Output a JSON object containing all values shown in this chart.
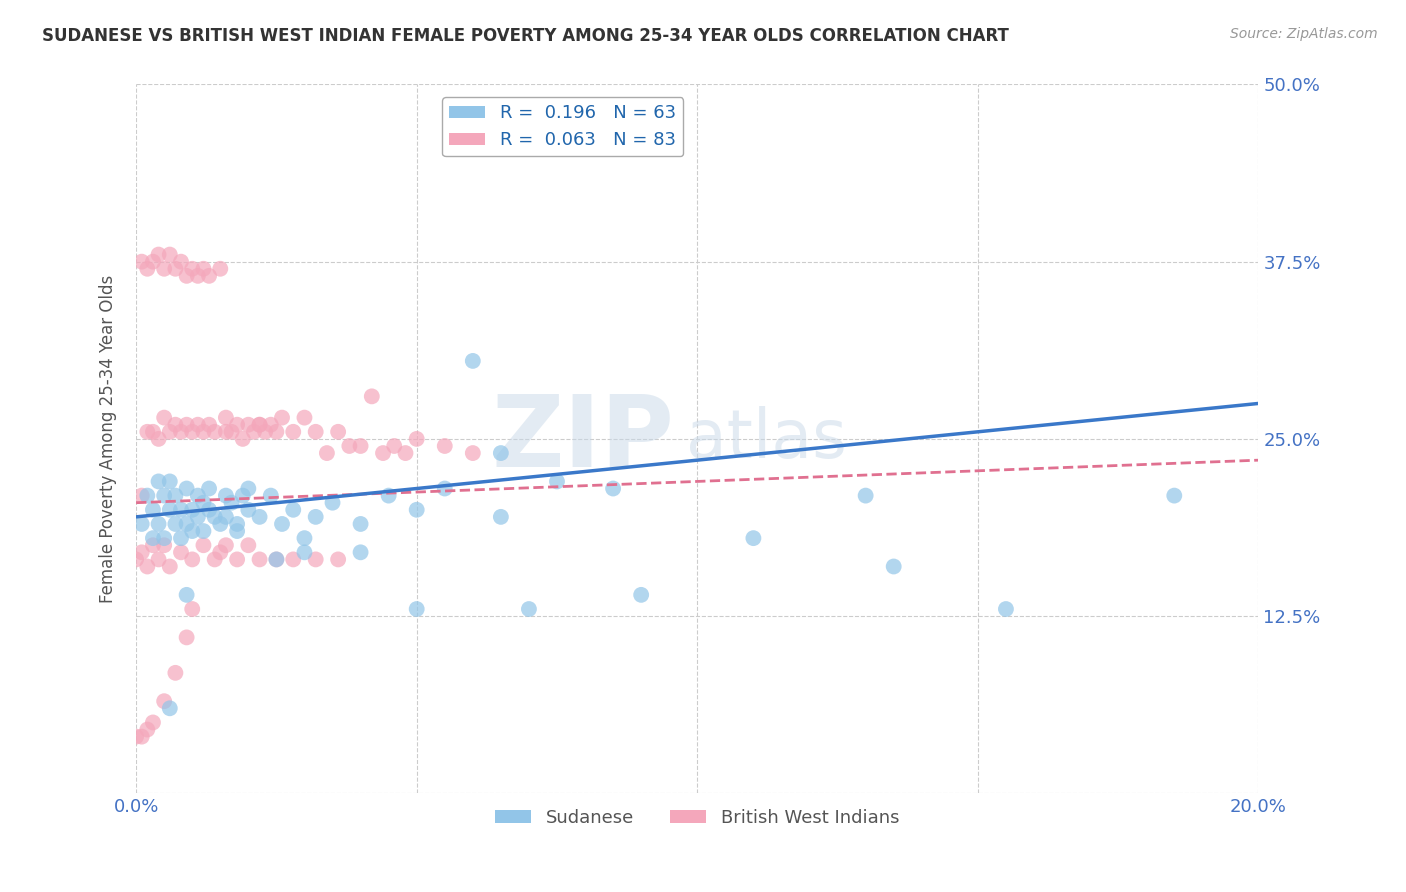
{
  "title": "SUDANESE VS BRITISH WEST INDIAN FEMALE POVERTY AMONG 25-34 YEAR OLDS CORRELATION CHART",
  "source": "Source: ZipAtlas.com",
  "ylabel": "Female Poverty Among 25-34 Year Olds",
  "xlim": [
    0.0,
    0.2
  ],
  "ylim": [
    0.0,
    0.5
  ],
  "sudanese_R": 0.196,
  "sudanese_N": 63,
  "bwi_R": 0.063,
  "bwi_N": 83,
  "sudanese_color": "#92c5e8",
  "bwi_color": "#f4a7bb",
  "sudanese_line_color": "#3a78c9",
  "bwi_line_color": "#e07090",
  "watermark_zip": "ZIP",
  "watermark_atlas": "atlas",
  "background_color": "#ffffff",
  "grid_color": "#cccccc",
  "sud_line_x0": 0.0,
  "sud_line_y0": 0.195,
  "sud_line_x1": 0.2,
  "sud_line_y1": 0.275,
  "bwi_line_x0": 0.0,
  "bwi_line_y0": 0.205,
  "bwi_line_x1": 0.2,
  "bwi_line_y1": 0.235,
  "sud_scatter_x": [
    0.001,
    0.002,
    0.003,
    0.003,
    0.004,
    0.004,
    0.005,
    0.005,
    0.006,
    0.006,
    0.007,
    0.007,
    0.008,
    0.008,
    0.009,
    0.009,
    0.01,
    0.01,
    0.011,
    0.011,
    0.012,
    0.012,
    0.013,
    0.013,
    0.014,
    0.015,
    0.016,
    0.016,
    0.017,
    0.018,
    0.019,
    0.02,
    0.022,
    0.024,
    0.026,
    0.028,
    0.03,
    0.032,
    0.035,
    0.04,
    0.045,
    0.05,
    0.055,
    0.06,
    0.065,
    0.075,
    0.085,
    0.065,
    0.13,
    0.185,
    0.135,
    0.155,
    0.05,
    0.07,
    0.09,
    0.11,
    0.04,
    0.02,
    0.025,
    0.03,
    0.018,
    0.009,
    0.006
  ],
  "sud_scatter_y": [
    0.19,
    0.21,
    0.2,
    0.18,
    0.22,
    0.19,
    0.21,
    0.18,
    0.2,
    0.22,
    0.19,
    0.21,
    0.2,
    0.18,
    0.215,
    0.19,
    0.2,
    0.185,
    0.21,
    0.195,
    0.205,
    0.185,
    0.2,
    0.215,
    0.195,
    0.19,
    0.21,
    0.195,
    0.205,
    0.19,
    0.21,
    0.2,
    0.195,
    0.21,
    0.19,
    0.2,
    0.18,
    0.195,
    0.205,
    0.19,
    0.21,
    0.2,
    0.215,
    0.305,
    0.195,
    0.22,
    0.215,
    0.24,
    0.21,
    0.21,
    0.16,
    0.13,
    0.13,
    0.13,
    0.14,
    0.18,
    0.17,
    0.215,
    0.165,
    0.17,
    0.185,
    0.14,
    0.06
  ],
  "bwi_scatter_x": [
    0.001,
    0.001,
    0.002,
    0.002,
    0.003,
    0.003,
    0.004,
    0.004,
    0.005,
    0.005,
    0.006,
    0.006,
    0.007,
    0.007,
    0.008,
    0.008,
    0.009,
    0.009,
    0.01,
    0.01,
    0.011,
    0.011,
    0.012,
    0.012,
    0.013,
    0.013,
    0.014,
    0.015,
    0.016,
    0.016,
    0.017,
    0.018,
    0.019,
    0.02,
    0.021,
    0.022,
    0.023,
    0.024,
    0.025,
    0.026,
    0.028,
    0.03,
    0.032,
    0.034,
    0.036,
    0.038,
    0.04,
    0.042,
    0.044,
    0.046,
    0.048,
    0.05,
    0.055,
    0.06,
    0.0,
    0.001,
    0.002,
    0.003,
    0.004,
    0.005,
    0.006,
    0.008,
    0.01,
    0.012,
    0.014,
    0.016,
    0.018,
    0.02,
    0.022,
    0.025,
    0.028,
    0.032,
    0.036,
    0.022,
    0.015,
    0.01,
    0.009,
    0.007,
    0.005,
    0.003,
    0.002,
    0.001,
    0.0
  ],
  "bwi_scatter_y": [
    0.21,
    0.375,
    0.255,
    0.37,
    0.255,
    0.375,
    0.25,
    0.38,
    0.265,
    0.37,
    0.255,
    0.38,
    0.26,
    0.37,
    0.255,
    0.375,
    0.26,
    0.365,
    0.255,
    0.37,
    0.26,
    0.365,
    0.255,
    0.37,
    0.26,
    0.365,
    0.255,
    0.37,
    0.255,
    0.265,
    0.255,
    0.26,
    0.25,
    0.26,
    0.255,
    0.26,
    0.255,
    0.26,
    0.255,
    0.265,
    0.255,
    0.265,
    0.255,
    0.24,
    0.255,
    0.245,
    0.245,
    0.28,
    0.24,
    0.245,
    0.24,
    0.25,
    0.245,
    0.24,
    0.165,
    0.17,
    0.16,
    0.175,
    0.165,
    0.175,
    0.16,
    0.17,
    0.165,
    0.175,
    0.165,
    0.175,
    0.165,
    0.175,
    0.165,
    0.165,
    0.165,
    0.165,
    0.165,
    0.26,
    0.17,
    0.13,
    0.11,
    0.085,
    0.065,
    0.05,
    0.045,
    0.04,
    0.04
  ]
}
